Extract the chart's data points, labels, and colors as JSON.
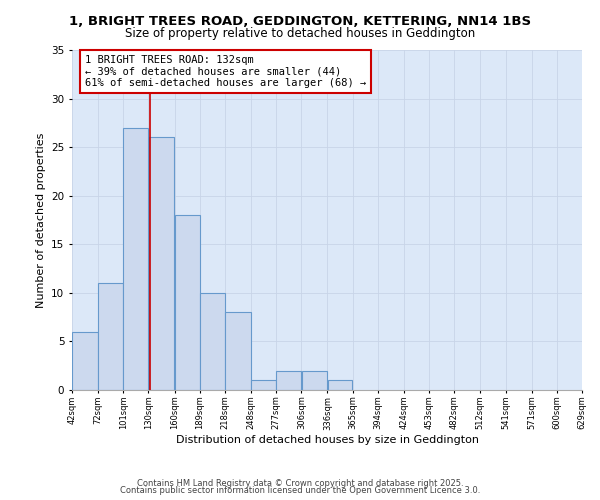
{
  "title1": "1, BRIGHT TREES ROAD, GEDDINGTON, KETTERING, NN14 1BS",
  "title2": "Size of property relative to detached houses in Geddington",
  "xlabel": "Distribution of detached houses by size in Geddington",
  "ylabel": "Number of detached properties",
  "bin_edges": [
    42,
    72,
    101,
    130,
    160,
    189,
    218,
    248,
    277,
    306,
    336,
    365,
    394,
    424,
    453,
    482,
    512,
    541,
    571,
    600,
    629
  ],
  "bar_heights": [
    6,
    11,
    27,
    26,
    18,
    10,
    8,
    1,
    2,
    2,
    1,
    0,
    0,
    0,
    0,
    0,
    0,
    0,
    0,
    0
  ],
  "bar_facecolor": "#ccd9ee",
  "bar_edgecolor": "#6699cc",
  "grid_color": "#c8d4e8",
  "bg_color": "#dce8f8",
  "red_line_x": 132,
  "annotation_text": "1 BRIGHT TREES ROAD: 132sqm\n← 39% of detached houses are smaller (44)\n61% of semi-detached houses are larger (68) →",
  "annotation_box_edgecolor": "#cc0000",
  "ylim": [
    0,
    35
  ],
  "yticks": [
    0,
    5,
    10,
    15,
    20,
    25,
    30,
    35
  ],
  "footer1": "Contains HM Land Registry data © Crown copyright and database right 2025.",
  "footer2": "Contains public sector information licensed under the Open Government Licence 3.0."
}
